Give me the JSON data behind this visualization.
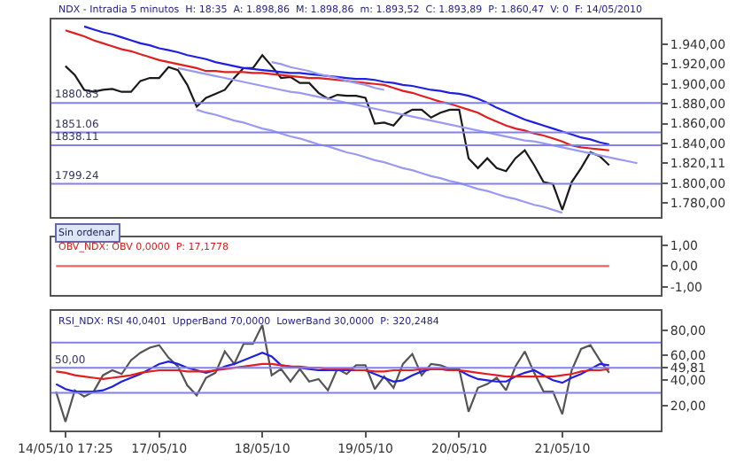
{
  "chart_data": [
    {
      "type": "line",
      "title": "NDX - Intradia 5 minutos  H: 18:35  A: 1.898,86  M: 1.898,86  m: 1.893,52  C: 1.893,89  P: 1.860,47  V: 0  F: 14/05/2010",
      "categories": [
        null,
        null,
        null,
        null,
        null,
        null,
        null,
        null,
        null,
        null,
        null,
        null,
        null,
        null,
        null,
        null,
        null,
        null,
        null,
        null,
        null,
        null,
        null,
        null,
        null,
        null,
        null,
        null,
        null,
        null,
        null,
        null,
        null,
        null,
        null,
        null,
        null,
        null,
        null,
        null,
        null,
        null,
        null,
        null,
        null,
        null,
        null,
        null,
        null,
        null,
        null,
        null,
        null,
        null,
        null,
        null,
        null,
        null,
        null,
        null,
        null,
        null,
        null,
        null,
        null
      ],
      "ylim": [
        1766,
        1965
      ],
      "yticks": [
        {
          "value": 1780,
          "label": "1.780,00"
        },
        {
          "value": 1800,
          "label": "1.800,00"
        },
        {
          "value": 1820.11,
          "label": "1.820,11"
        },
        {
          "value": 1840,
          "label": "1.840,00"
        },
        {
          "value": 1860,
          "label": "1.860,00"
        },
        {
          "value": 1880,
          "label": "1.880,00"
        },
        {
          "value": 1900,
          "label": "1.900,00"
        },
        {
          "value": 1920,
          "label": "1.920,00"
        },
        {
          "value": 1940,
          "label": "1.940,00"
        }
      ],
      "tick_labels": "y",
      "series": [
        {
          "color": "#1a1a1a",
          "values": [
            null,
            1918,
            1909,
            1894,
            1892,
            1894,
            1895,
            1892,
            1892,
            1903,
            1906,
            1906,
            1917,
            1914,
            1899,
            1877,
            1886,
            1890,
            1894,
            1906,
            1916,
            1916,
            1929,
            1918,
            1906,
            1907,
            1901,
            1901,
            1891,
            1885,
            1889,
            1888,
            1888,
            1886,
            1860,
            1861,
            1858,
            1869,
            1874,
            1874,
            1866,
            1871,
            1874,
            1874,
            1825,
            1815,
            1825,
            1815,
            1812,
            1825,
            1833,
            1818,
            1801,
            1799,
            1773,
            1801,
            1815,
            1831,
            1827,
            1818,
            null,
            null,
            null,
            null,
            null
          ]
        },
        {
          "color": "#2020e0",
          "values": [
            null,
            null,
            null,
            1958,
            1955,
            1952,
            1950,
            1947,
            1944,
            1941,
            1939,
            1936,
            1934,
            1932,
            1929,
            1927,
            1925,
            1922,
            1920,
            1918,
            1916,
            1915,
            1914,
            1913,
            1912,
            1911,
            1911,
            1910,
            1909,
            1908,
            1907,
            1906,
            1905,
            1905,
            1904,
            1902,
            1901,
            1899,
            1898,
            1896,
            1894,
            1893,
            1891,
            1890,
            1888,
            1885,
            1881,
            1876,
            1872,
            1868,
            1864,
            1861,
            1858,
            1855,
            1852,
            1849,
            1846,
            1844,
            1841,
            1839,
            null,
            null,
            null,
            null,
            null
          ]
        },
        {
          "color": "#e02020",
          "values": [
            null,
            1954,
            1951,
            1948,
            1944,
            1941,
            1938,
            1935,
            1933,
            1930,
            1927,
            1924,
            1922,
            1920,
            1918,
            1916,
            1913,
            1913,
            1912,
            1912,
            1912,
            1911,
            1911,
            1910,
            1909,
            1908,
            1907,
            1906,
            1906,
            1905,
            1904,
            1903,
            1902,
            1901,
            1900,
            1899,
            1896,
            1893,
            1891,
            1888,
            1885,
            1882,
            1880,
            1877,
            1874,
            1871,
            1866,
            1862,
            1858,
            1855,
            1853,
            1850,
            1848,
            1845,
            1842,
            1838,
            1836,
            1835,
            1834,
            1833,
            null,
            null,
            null,
            null,
            null
          ]
        },
        {
          "color": "#9a9af0",
          "values": [
            null,
            null,
            null,
            null,
            null,
            null,
            null,
            null,
            null,
            null,
            null,
            null,
            null,
            1916,
            1914,
            1912,
            1910,
            1908,
            1906,
            1904,
            1902,
            1900,
            1898,
            1896,
            1894,
            1892,
            1891,
            1889,
            1887,
            1885,
            1883,
            1881,
            1879,
            1877,
            1875,
            1873,
            1871,
            1869,
            1867,
            1865,
            1863,
            1861,
            1859,
            1857,
            1855,
            1853,
            1851,
            1849,
            1847,
            1845,
            1843,
            1842,
            1840,
            1838,
            1836,
            1834,
            1832,
            1830,
            1828,
            1826,
            1824,
            1822,
            1820,
            null,
            null
          ]
        },
        {
          "color": "#9a9af0",
          "values": [
            null,
            null,
            null,
            null,
            null,
            null,
            null,
            null,
            null,
            null,
            null,
            null,
            null,
            null,
            null,
            1874,
            1871,
            1869,
            1866,
            1863,
            1861,
            1858,
            1855,
            1853,
            1850,
            1847,
            1845,
            1842,
            1839,
            1837,
            1834,
            1831,
            1829,
            1826,
            1823,
            1821,
            1818,
            1815,
            1813,
            1810,
            1807,
            1805,
            1802,
            1800,
            1797,
            1794,
            1792,
            1789,
            1786,
            1784,
            1781,
            1778,
            1776,
            1773,
            1770,
            null,
            null,
            null,
            null,
            null,
            null,
            null,
            null,
            null,
            null
          ]
        },
        {
          "color": "#9a9af0",
          "values": [
            null,
            null,
            null,
            null,
            null,
            null,
            null,
            null,
            null,
            null,
            null,
            null,
            null,
            null,
            null,
            null,
            null,
            null,
            null,
            null,
            null,
            null,
            null,
            1922,
            1920,
            1917,
            1915,
            1913,
            1910,
            1908,
            1906,
            1903,
            1901,
            1899,
            1896,
            1894,
            null,
            null,
            null,
            null,
            null,
            null,
            null,
            null,
            null,
            null,
            null,
            null,
            null,
            null,
            null,
            null,
            null,
            null,
            null,
            null,
            null,
            null,
            null,
            null,
            null,
            null,
            null,
            null,
            null
          ]
        }
      ],
      "ref_lines": [
        {
          "axis": "y",
          "value": 1880.83,
          "label": "1880.83",
          "color": "#8080ee"
        },
        {
          "axis": "y",
          "value": 1851.06,
          "label": "1851.06",
          "color": "#8080ee"
        },
        {
          "axis": "y",
          "value": 1838.11,
          "label": "1838.11",
          "color": "#8080ee"
        },
        {
          "axis": "y",
          "value": 1799.24,
          "label": "1799.24",
          "color": "#8080ee"
        }
      ],
      "annotations": [
        "Sin ordenar"
      ]
    },
    {
      "type": "line",
      "title": "OBV_NDX: OBV 0,0000  P: 17,1778",
      "categories": [
        null,
        null,
        null,
        null,
        null,
        null,
        null,
        null,
        null,
        null,
        null,
        null,
        null,
        null,
        null,
        null,
        null,
        null,
        null,
        null,
        null,
        null,
        null,
        null,
        null,
        null,
        null,
        null,
        null,
        null,
        null,
        null,
        null,
        null,
        null,
        null,
        null,
        null,
        null,
        null,
        null,
        null,
        null,
        null,
        null,
        null,
        null,
        null,
        null,
        null,
        null,
        null,
        null,
        null,
        null,
        null,
        null,
        null,
        null,
        null,
        null,
        null,
        null,
        null,
        null
      ],
      "ylim": [
        -1.4,
        1.4
      ],
      "yticks": [
        {
          "value": -1,
          "label": "-1,00"
        },
        {
          "value": 0,
          "label": "0,00"
        },
        {
          "value": 1,
          "label": "1,00"
        }
      ],
      "tick_labels": "y",
      "series": [
        {
          "color": "#f06060",
          "values": [
            0,
            0,
            0,
            0,
            0,
            0,
            0,
            0,
            0,
            0,
            0,
            0,
            0,
            0,
            0,
            0,
            0,
            0,
            0,
            0,
            0,
            0,
            0,
            0,
            0,
            0,
            0,
            0,
            0,
            0,
            0,
            0,
            0,
            0,
            0,
            0,
            0,
            0,
            0,
            0,
            0,
            0,
            0,
            0,
            0,
            0,
            0,
            0,
            0,
            0,
            0,
            0,
            0,
            0,
            0,
            0,
            0,
            0,
            0,
            0,
            null,
            null,
            null,
            null,
            null
          ]
        }
      ]
    },
    {
      "type": "line",
      "title": "RSI_NDX: RSI 40,0401  UpperBand 70,0000  LowerBand 30,0000  P: 320,2484",
      "categories": [
        null,
        "14/05/10 17:25",
        null,
        null,
        null,
        null,
        null,
        null,
        null,
        null,
        null,
        "17/05/10",
        null,
        null,
        null,
        null,
        null,
        null,
        null,
        null,
        null,
        null,
        "18/05/10",
        null,
        null,
        null,
        null,
        null,
        null,
        null,
        null,
        null,
        null,
        "19/05/10",
        null,
        null,
        null,
        null,
        null,
        null,
        null,
        null,
        null,
        "20/05/10",
        null,
        null,
        null,
        null,
        null,
        null,
        null,
        null,
        null,
        null,
        "21/05/10",
        null,
        null,
        null,
        null,
        null,
        null,
        null,
        null,
        null,
        null
      ],
      "ylim": [
        0,
        95
      ],
      "yticks": [
        {
          "value": 20,
          "label": "20,00"
        },
        {
          "value": 40,
          "label": "40,00"
        },
        {
          "value": 49.81,
          "label": "49,81"
        },
        {
          "value": 60,
          "label": "60,00"
        },
        {
          "value": 80,
          "label": "80,00"
        }
      ],
      "series": [
        {
          "color": "#555555",
          "values": [
            31,
            7,
            32,
            27,
            31,
            44,
            48,
            45,
            56,
            62,
            66,
            68,
            58,
            51,
            36,
            28,
            42,
            46,
            63,
            53,
            69,
            69,
            84,
            44,
            49,
            39,
            49,
            39,
            41,
            32,
            49,
            45,
            52,
            52,
            33,
            43,
            34,
            53,
            61,
            44,
            53,
            52,
            49,
            49,
            15,
            34,
            37,
            42,
            32,
            51,
            63,
            46,
            31,
            31,
            13,
            48,
            65,
            68,
            56,
            46,
            null,
            null,
            null,
            null,
            null
          ]
        },
        {
          "color": "#2020e0",
          "values": [
            37,
            33,
            31,
            31,
            31,
            32,
            35,
            39,
            42,
            45,
            49,
            53,
            55,
            53,
            50,
            48,
            46,
            48,
            51,
            53,
            56,
            59,
            62,
            59,
            52,
            51,
            50,
            49,
            48,
            48,
            48,
            48,
            48,
            48,
            45,
            42,
            39,
            40,
            44,
            47,
            49,
            49,
            48,
            48,
            44,
            41,
            40,
            39,
            39,
            43,
            46,
            48,
            44,
            40,
            38,
            42,
            45,
            49,
            53,
            52,
            null,
            null,
            null,
            null,
            null
          ]
        },
        {
          "color": "#e02020",
          "values": [
            47,
            46,
            44,
            43,
            42,
            41,
            42,
            43,
            44,
            46,
            47,
            48,
            48,
            48,
            47,
            47,
            47,
            48,
            49,
            50,
            51,
            52,
            53,
            53,
            52,
            51,
            51,
            50,
            50,
            49,
            49,
            49,
            48,
            48,
            47,
            47,
            48,
            48,
            48,
            49,
            49,
            49,
            48,
            48,
            47,
            46,
            45,
            44,
            43,
            43,
            43,
            43,
            43,
            43,
            44,
            45,
            47,
            48,
            48,
            49,
            null,
            null,
            null,
            null,
            null
          ]
        }
      ],
      "ref_lines": [
        {
          "axis": "y",
          "value": 70,
          "label": null,
          "color": "#8080ee"
        },
        {
          "axis": "y",
          "value": 50,
          "label": "50,00",
          "color": "#8080ee"
        },
        {
          "axis": "y",
          "value": 30,
          "label": null,
          "color": "#8080ee"
        }
      ]
    }
  ]
}
